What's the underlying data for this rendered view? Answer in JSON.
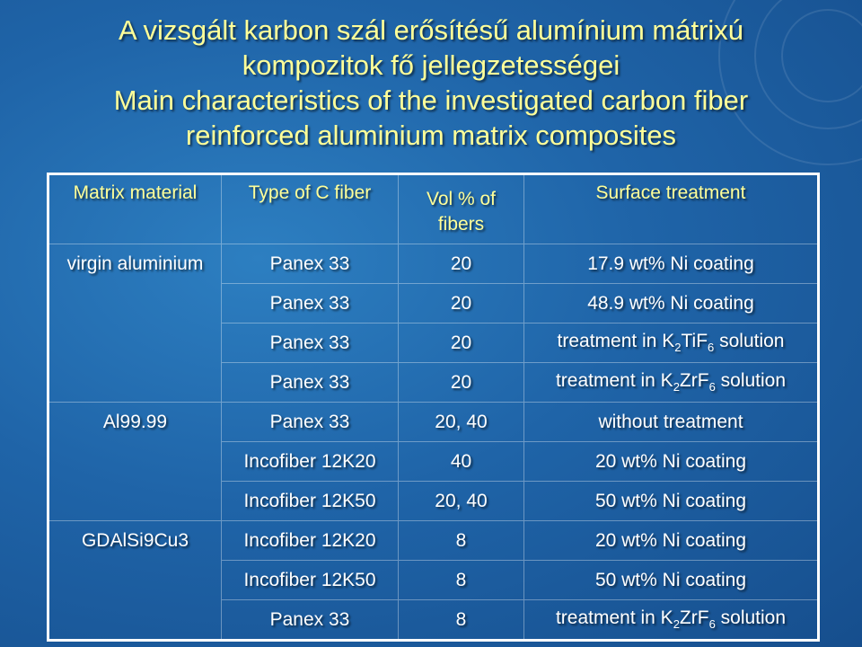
{
  "title_lines": [
    "A vizsgált karbon szál erősítésű alumínium mátrixú",
    "kompozitok fő jellegzetességei",
    "Main characteristics of the investigated carbon fiber",
    "reinforced aluminium matrix composites"
  ],
  "table": {
    "headers": [
      "Matrix material",
      "Type of C fiber",
      "Vol % of fibers",
      "Surface treatment"
    ],
    "matrix_groups": [
      "virgin aluminium",
      "Al99.99",
      "GDAlSi9Cu3"
    ],
    "rows": [
      {
        "fiber": "Panex 33",
        "vol": "20",
        "treatment": [
          "17.9 wt% Ni coating"
        ]
      },
      {
        "fiber": "Panex 33",
        "vol": "20",
        "treatment": [
          "48.9 wt% Ni coating"
        ]
      },
      {
        "fiber": "Panex 33",
        "vol": "20",
        "treatment": [
          "treatment in K",
          "2",
          "TiF",
          "6",
          " solution"
        ]
      },
      {
        "fiber": "Panex 33",
        "vol": "20",
        "treatment": [
          "treatment in K",
          "2",
          "ZrF",
          "6",
          " solution"
        ]
      },
      {
        "fiber": "Panex 33",
        "vol": "20, 40",
        "treatment": [
          "without treatment"
        ]
      },
      {
        "fiber": "Incofiber 12K20",
        "vol": "40",
        "treatment": [
          "20 wt% Ni coating"
        ]
      },
      {
        "fiber": "Incofiber 12K50",
        "vol": "20, 40",
        "treatment": [
          "50 wt% Ni coating"
        ]
      },
      {
        "fiber": "Incofiber 12K20",
        "vol": "8",
        "treatment": [
          "20 wt% Ni coating"
        ]
      },
      {
        "fiber": "Incofiber 12K50",
        "vol": "8",
        "treatment": [
          "50 wt% Ni coating"
        ]
      },
      {
        "fiber": "Panex 33",
        "vol": "8",
        "treatment": [
          "treatment in K",
          "2",
          "ZrF",
          "6",
          " solution"
        ]
      }
    ]
  },
  "colors": {
    "title": "#ffff99",
    "header": "#ffff99",
    "body_text": "#ffffff",
    "background": "#1f64a8"
  }
}
